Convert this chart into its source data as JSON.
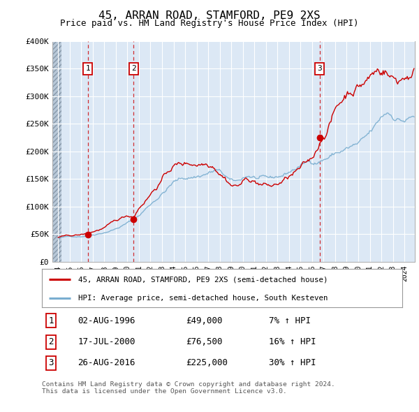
{
  "title": "45, ARRAN ROAD, STAMFORD, PE9 2XS",
  "subtitle": "Price paid vs. HM Land Registry's House Price Index (HPI)",
  "ylim": [
    0,
    400000
  ],
  "yticks": [
    0,
    50000,
    100000,
    150000,
    200000,
    250000,
    300000,
    350000,
    400000
  ],
  "ytick_labels": [
    "£0",
    "£50K",
    "£100K",
    "£150K",
    "£200K",
    "£250K",
    "£300K",
    "£350K",
    "£400K"
  ],
  "xlim_start": 1993.5,
  "xlim_end": 2024.9,
  "hatch_end_year": 1994.3,
  "transactions": [
    {
      "num": 1,
      "date": "02-AUG-1996",
      "year": 1996.583,
      "price": 49000,
      "hpi_pct": "7% ↑ HPI"
    },
    {
      "num": 2,
      "date": "17-JUL-2000",
      "year": 2000.542,
      "price": 76500,
      "hpi_pct": "16% ↑ HPI"
    },
    {
      "num": 3,
      "date": "26-AUG-2016",
      "year": 2016.653,
      "price": 225000,
      "hpi_pct": "30% ↑ HPI"
    }
  ],
  "legend_label_red": "45, ARRAN ROAD, STAMFORD, PE9 2XS (semi-detached house)",
  "legend_label_blue": "HPI: Average price, semi-detached house, South Kesteven",
  "footer": "Contains HM Land Registry data © Crown copyright and database right 2024.\nThis data is licensed under the Open Government Licence v3.0.",
  "red_color": "#cc0000",
  "blue_color": "#7aaed0",
  "background_color": "#ffffff",
  "plot_bg_color": "#dce8f5",
  "grid_color": "#ffffff"
}
